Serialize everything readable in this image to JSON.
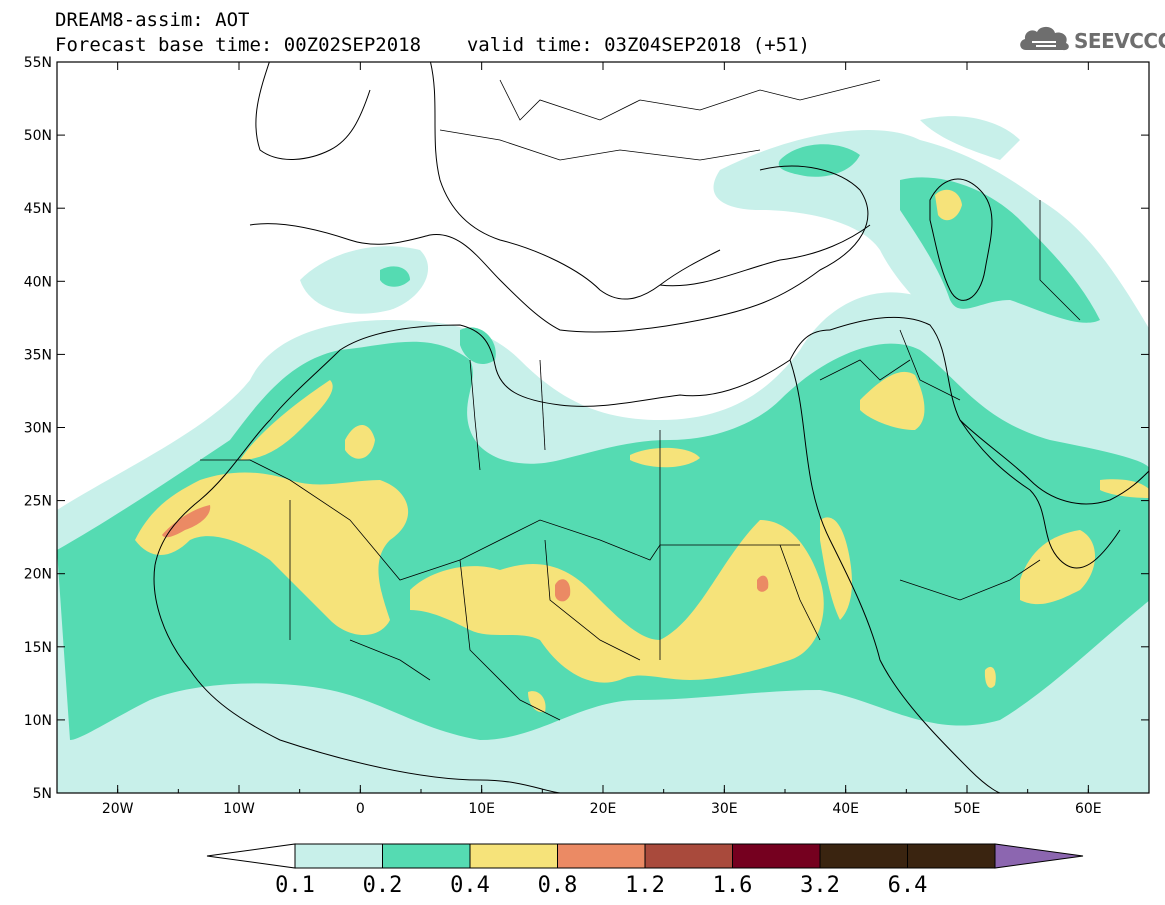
{
  "title": {
    "line1": "DREAM8-assim: AOT",
    "base_time": "Forecast base time: 00Z02SEP2018",
    "valid_time": "valid time: 03Z04SEP2018 (+51)"
  },
  "logo": {
    "text": "SEEVCCC",
    "icon": "cloud-icon",
    "color": "#6e6e6e"
  },
  "map": {
    "lat_ticks": [
      "55N",
      "50N",
      "45N",
      "40N",
      "35N",
      "30N",
      "25N",
      "20N",
      "15N",
      "10N",
      "5N"
    ],
    "lon_ticks": [
      "20W",
      "10W",
      "0",
      "10E",
      "20E",
      "30E",
      "40E",
      "50E",
      "60E"
    ]
  },
  "colorbar": {
    "labels": [
      "0.1",
      "0.2",
      "0.4",
      "0.8",
      "1.2",
      "1.6",
      "3.2",
      "6.4"
    ],
    "colors": [
      "#ffffff",
      "#c8f0ea",
      "#55dbb2",
      "#f6e37a",
      "#eb8a64",
      "#a94a3c",
      "#75001f",
      "#3a2410",
      "#8c66b0"
    ]
  }
}
